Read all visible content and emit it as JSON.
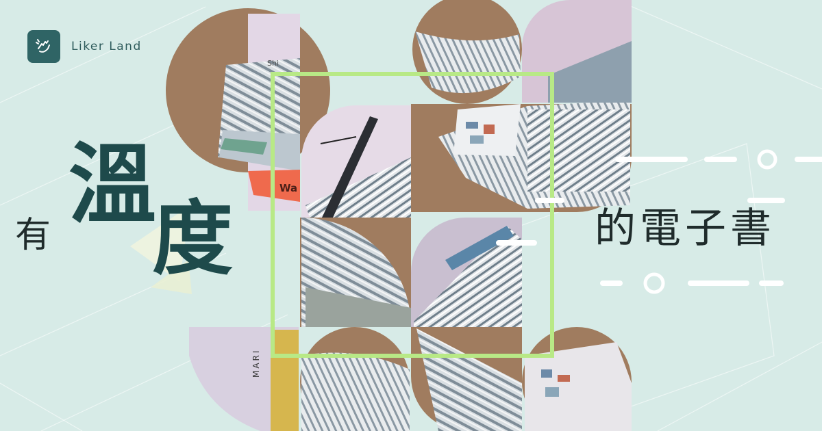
{
  "brand": {
    "name": "Liker Land",
    "logo_icon": "hand-clap-icon",
    "badge_color": "#2f6465"
  },
  "headline": {
    "char_1": "有",
    "char_2": "溫",
    "char_3": "度",
    "rest": "的電子書"
  },
  "photo_texts": {
    "label_a": "Shi",
    "label_b": "Wa",
    "label_c": "MARI"
  },
  "colors": {
    "background": "#d7ebe7",
    "frame": "#b8e986",
    "headline_accent": "#1e4a4b",
    "brown": "#a07c5f"
  }
}
